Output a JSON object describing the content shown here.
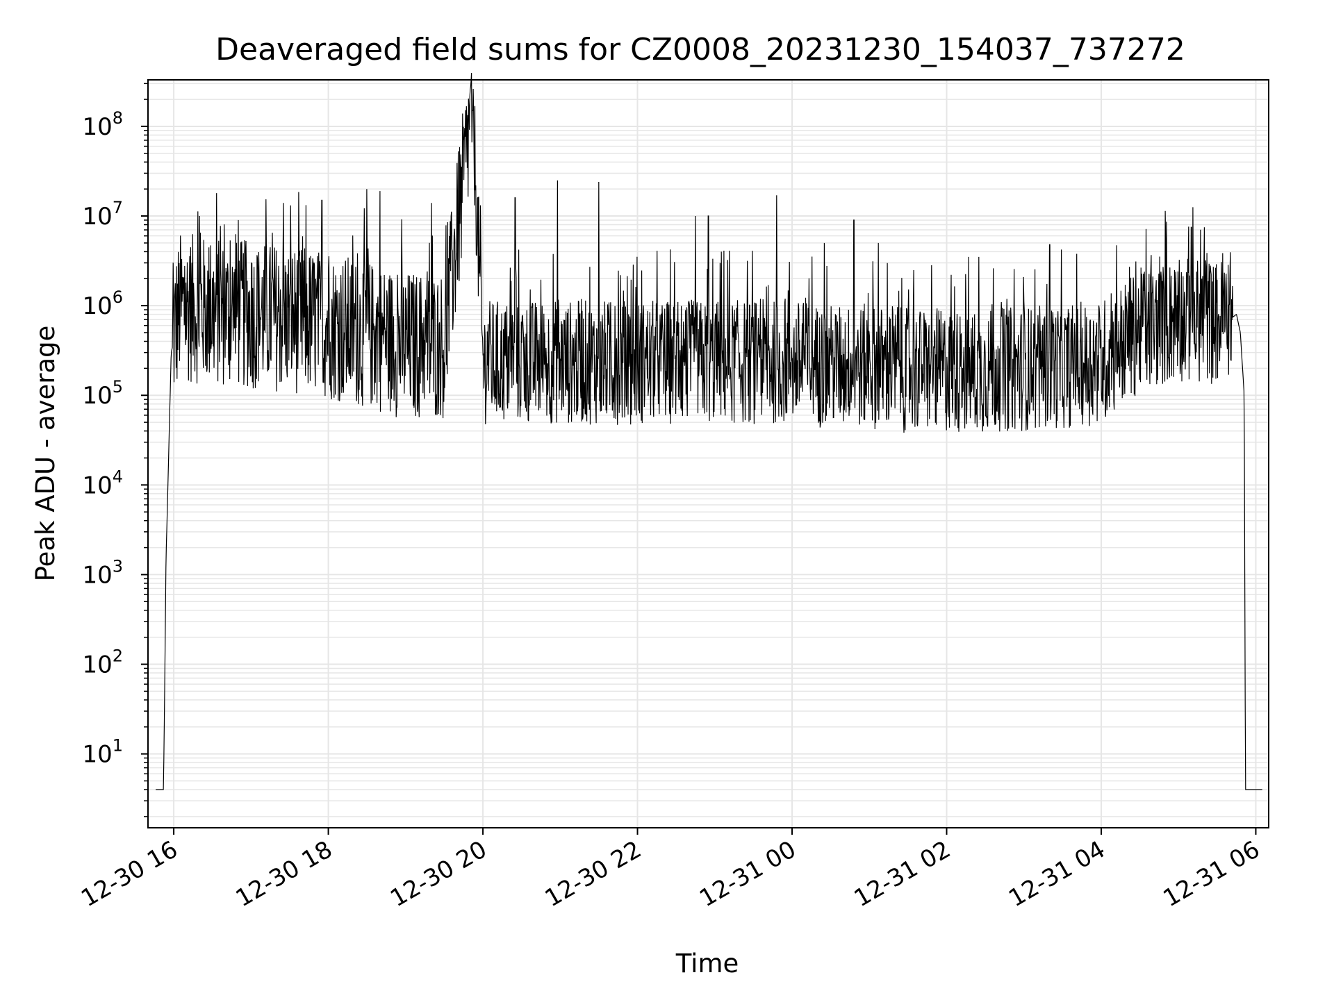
{
  "chart_data": {
    "type": "line",
    "title": "Deaveraged field sums for CZ0008_20231230_154037_737272",
    "xlabel": "Time",
    "ylabel": "Peak ADU - average",
    "y_scale": "log",
    "ylim": [
      1.5,
      330000000
    ],
    "xlim": [
      "12-30 15:40",
      "12-31 06:10"
    ],
    "grid": true,
    "line_color": "#000000",
    "x_ticks": [
      "12-30 16",
      "12-30 18",
      "12-30 20",
      "12-30 22",
      "12-31 00",
      "12-31 02",
      "12-31 04",
      "12-31 06"
    ],
    "y_ticks": [
      {
        "base": "10",
        "exp": "1"
      },
      {
        "base": "10",
        "exp": "2"
      },
      {
        "base": "10",
        "exp": "3"
      },
      {
        "base": "10",
        "exp": "4"
      },
      {
        "base": "10",
        "exp": "5"
      },
      {
        "base": "10",
        "exp": "6"
      },
      {
        "base": "10",
        "exp": "7"
      },
      {
        "base": "10",
        "exp": "8"
      }
    ],
    "series": [
      {
        "x": [
          "12-30 15:46",
          "12-30 15:52",
          "12-30 15:53",
          "12-30 15:54",
          "12-30 15:56",
          "12-30 15:58",
          "12-30 16:05",
          "12-30 16:30",
          "12-30 17:00",
          "12-30 17:30",
          "12-30 18:00",
          "12-30 18:30",
          "12-30 19:00",
          "12-30 19:30",
          "12-30 19:52",
          "12-30 20:00",
          "12-30 20:30",
          "12-30 21:00",
          "12-30 21:30",
          "12-30 22:00",
          "12-30 22:30",
          "12-30 23:00",
          "12-30 23:30",
          "12-31 00:00",
          "12-31 00:30",
          "12-31 01:00",
          "12-31 01:30",
          "12-31 02:00",
          "12-31 02:30",
          "12-31 03:00",
          "12-31 03:30",
          "12-31 04:00",
          "12-31 04:30",
          "12-31 05:00",
          "12-31 05:30",
          "12-31 05:45",
          "12-31 05:48",
          "12-31 05:51",
          "12-31 05:52",
          "12-31 05:55",
          "12-31 06:00",
          "12-31 06:05"
        ],
        "y": [
          4,
          4,
          60,
          1500,
          20000,
          300000,
          800000,
          700000,
          650000,
          600000,
          500000,
          400000,
          300000,
          300000,
          150000000,
          200000,
          200000,
          200000,
          200000,
          200000,
          200000,
          200000,
          200000,
          200000,
          180000,
          180000,
          160000,
          160000,
          160000,
          170000,
          180000,
          200000,
          450000,
          600000,
          550000,
          800000,
          500000,
          100000,
          4,
          4,
          4,
          4
        ],
        "spikes": [
          {
            "x": "12-30 16:20",
            "y": 10000000
          },
          {
            "x": "12-30 16:50",
            "y": 9000000
          },
          {
            "x": "12-30 17:25",
            "y": 14000000
          },
          {
            "x": "12-30 17:55",
            "y": 15000000
          },
          {
            "x": "12-30 18:30",
            "y": 20000000
          },
          {
            "x": "12-30 18:40",
            "y": 19000000
          },
          {
            "x": "12-30 19:20",
            "y": 14000000
          },
          {
            "x": "12-30 19:52",
            "y": 150000000
          },
          {
            "x": "12-30 20:25",
            "y": 16000000
          },
          {
            "x": "12-30 20:58",
            "y": 25000000
          },
          {
            "x": "12-30 21:30",
            "y": 24000000
          },
          {
            "x": "12-30 22:45",
            "y": 10000000
          },
          {
            "x": "12-30 22:55",
            "y": 10000000
          },
          {
            "x": "12-30 23:48",
            "y": 17000000
          },
          {
            "x": "12-31 00:25",
            "y": 5000000
          },
          {
            "x": "12-31 00:48",
            "y": 9000000
          },
          {
            "x": "12-31 01:07",
            "y": 5000000
          },
          {
            "x": "12-31 02:25",
            "y": 3500000
          },
          {
            "x": "12-31 03:20",
            "y": 4800000
          },
          {
            "x": "12-31 04:50",
            "y": 5000000
          },
          {
            "x": "12-31 05:10",
            "y": 7500000
          },
          {
            "x": "12-31 05:20",
            "y": 7500000
          }
        ]
      }
    ]
  }
}
